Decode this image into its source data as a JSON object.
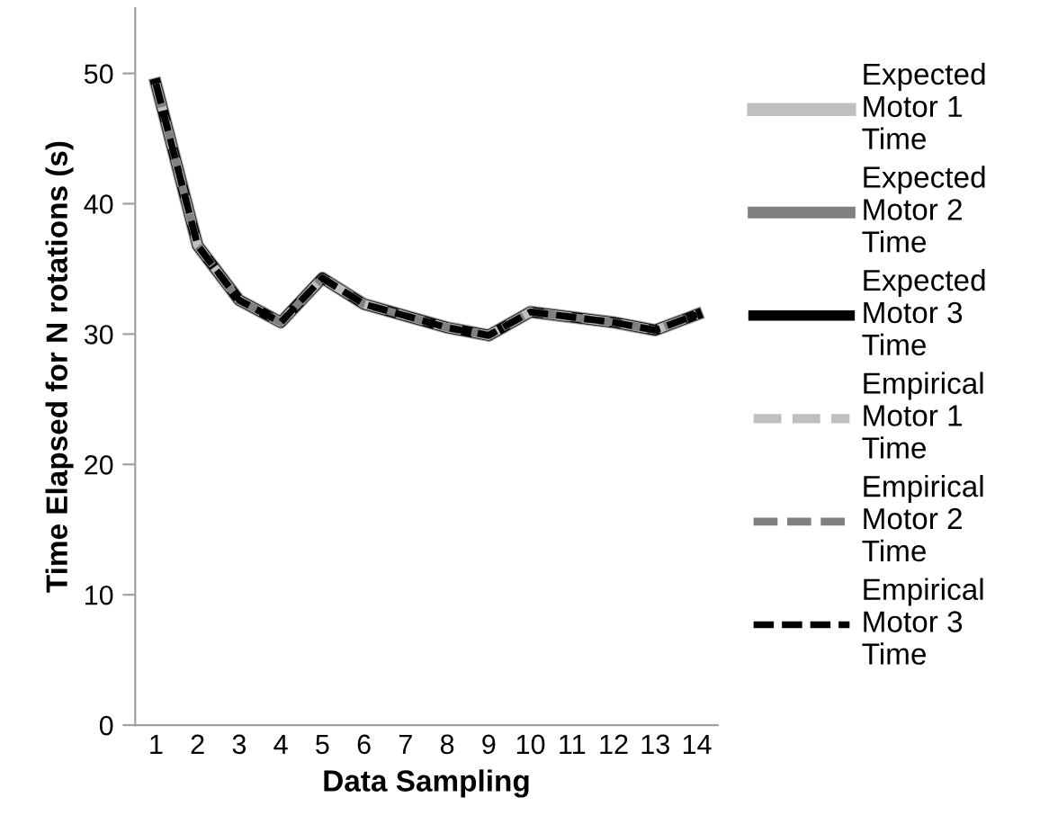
{
  "chart_data": {
    "type": "line",
    "xlabel": "Data Sampling",
    "ylabel": "Time Elapsed for N rotations (s)",
    "categories": [
      "1",
      "2",
      "3",
      "4",
      "5",
      "6",
      "7",
      "8",
      "9",
      "10",
      "11",
      "12",
      "13",
      "14"
    ],
    "series": [
      {
        "name": "Expected Motor 1 Time",
        "color": "#bfbfbf",
        "line_style": "solid",
        "values": [
          49.2,
          36.8,
          32.6,
          30.9,
          34.3,
          32.3,
          31.4,
          30.5,
          29.9,
          31.7,
          31.3,
          30.9,
          30.3,
          31.5
        ]
      },
      {
        "name": "Expected Motor 2 Time",
        "color": "#808080",
        "line_style": "solid",
        "values": [
          49.2,
          36.8,
          32.6,
          30.9,
          34.3,
          32.3,
          31.4,
          30.5,
          29.9,
          31.7,
          31.3,
          30.9,
          30.3,
          31.5
        ]
      },
      {
        "name": "Expected Motor 3 Time",
        "color": "#000000",
        "line_style": "solid",
        "values": [
          49.2,
          36.8,
          32.6,
          30.9,
          34.3,
          32.3,
          31.4,
          30.5,
          29.9,
          31.7,
          31.3,
          30.9,
          30.3,
          31.5
        ]
      },
      {
        "name": "Empirical Motor 1 Time",
        "color": "#bfbfbf",
        "line_style": "dashed",
        "values": [
          49.2,
          36.8,
          32.6,
          30.9,
          34.3,
          32.3,
          31.4,
          30.5,
          29.9,
          31.7,
          31.3,
          30.9,
          30.3,
          31.5
        ]
      },
      {
        "name": "Empirical Motor 2 Time",
        "color": "#808080",
        "line_style": "dashed",
        "values": [
          49.2,
          36.8,
          32.6,
          30.9,
          34.3,
          32.3,
          31.4,
          30.5,
          29.9,
          31.7,
          31.3,
          30.9,
          30.3,
          31.5
        ]
      },
      {
        "name": "Empirical Motor 3 Time",
        "color": "#000000",
        "line_style": "dashed",
        "values": [
          49.2,
          36.8,
          32.6,
          30.9,
          34.3,
          32.3,
          31.4,
          30.5,
          29.9,
          31.7,
          31.3,
          30.9,
          30.3,
          31.5
        ]
      }
    ],
    "ylim": [
      0,
      55
    ],
    "yticks": [
      0,
      10,
      20,
      30,
      40,
      50
    ],
    "grid": false,
    "legend": "right",
    "marker": "none"
  }
}
